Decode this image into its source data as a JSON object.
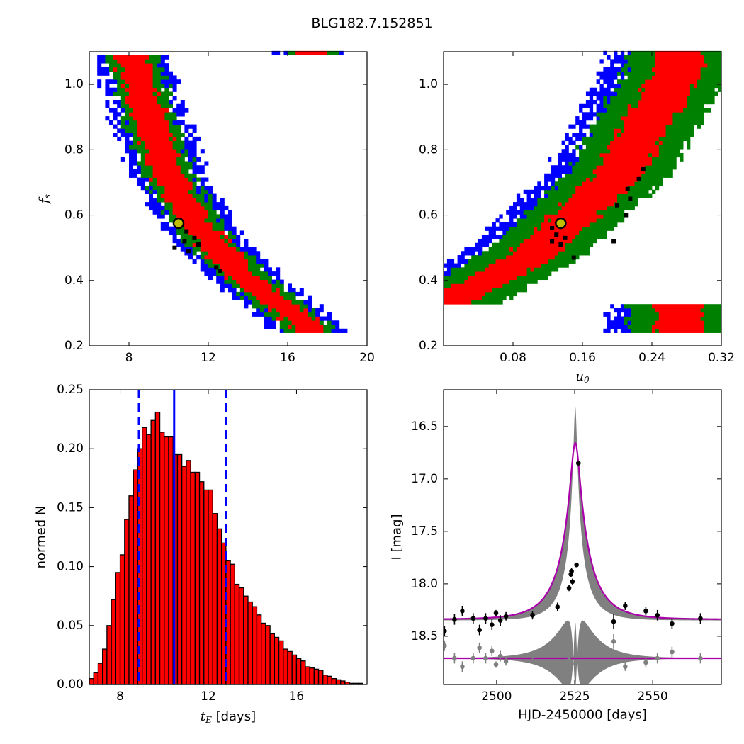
{
  "figure_title": "BLG182.7.152851",
  "colors": {
    "sigma1": "#ff0000",
    "sigma2": "#008000",
    "sigma3": "#0000ff",
    "best_points": "#000000",
    "best_marker_fill": "#bfbf00",
    "hist_bar": "#ff0000",
    "marker_line": "#0000ff",
    "model": "#aa00aa",
    "band": "#808080",
    "data_points": "#000000",
    "residual_points": "#808080"
  },
  "chart_data": [
    {
      "id": "fs_vs_tE",
      "type": "heatmap",
      "title": "",
      "xlabel": "",
      "ylabel": "f_s",
      "xlim": [
        6,
        20
      ],
      "ylim": [
        0.2,
        1.1
      ],
      "xticks": [
        8,
        12,
        16,
        20
      ],
      "yticks": [
        0.2,
        0.4,
        0.6,
        0.8,
        1.0
      ],
      "xticklabels": [
        "8",
        "12",
        "16",
        "20"
      ],
      "yticklabels": [
        "0.2",
        "0.4",
        "0.6",
        "0.8",
        "1.0"
      ],
      "regions": {
        "ridge_x_at_y": [
          [
            1.08,
            8.0
          ],
          [
            0.9,
            8.9
          ],
          [
            0.7,
            10.0
          ],
          [
            0.55,
            11.5
          ],
          [
            0.4,
            13.8
          ],
          [
            0.25,
            17.0
          ]
        ],
        "half_widths": {
          "sigma1": 0.8,
          "sigma2": 1.3,
          "sigma3": 1.9
        },
        "ylim": [
          0.24,
          1.09
        ]
      },
      "best_points": [
        [
          10.9,
          0.55
        ],
        [
          11.3,
          0.53
        ],
        [
          10.8,
          0.52
        ],
        [
          11.5,
          0.51
        ],
        [
          10.3,
          0.5
        ],
        [
          11.0,
          0.49
        ],
        [
          12.4,
          0.44
        ],
        [
          12.6,
          0.43
        ]
      ],
      "best_fit": {
        "x": 10.5,
        "y": 0.575
      }
    },
    {
      "id": "fs_vs_u0",
      "type": "heatmap",
      "title": "",
      "xlabel": "u_0",
      "ylabel": "",
      "xlim": [
        0,
        0.32
      ],
      "ylim": [
        0.2,
        1.1
      ],
      "xticks": [
        0.08,
        0.16,
        0.24,
        0.32
      ],
      "yticks": [
        0.2,
        0.4,
        0.6,
        0.8,
        1.0
      ],
      "xticklabels": [
        "0.08",
        "0.16",
        "0.24",
        "0.32"
      ],
      "yticklabels": [
        "0.2",
        "0.4",
        "0.6",
        "0.8",
        "1.0"
      ],
      "regions": {
        "center_line": [
          [
            0.0,
            0.32
          ],
          [
            0.1,
            0.47
          ],
          [
            0.2,
            0.72
          ],
          [
            0.27,
            1.05
          ]
        ],
        "half_widths": {
          "sigma1": 0.028,
          "sigma2": 0.06,
          "sigma3": 0.085
        },
        "ylim": [
          0.24,
          1.09
        ]
      },
      "best_points": [
        [
          0.125,
          0.56
        ],
        [
          0.13,
          0.54
        ],
        [
          0.125,
          0.52
        ],
        [
          0.135,
          0.51
        ],
        [
          0.14,
          0.53
        ],
        [
          0.15,
          0.47
        ],
        [
          0.196,
          0.52
        ],
        [
          0.21,
          0.6
        ],
        [
          0.215,
          0.65
        ],
        [
          0.225,
          0.71
        ],
        [
          0.23,
          0.74
        ],
        [
          0.2,
          0.63
        ],
        [
          0.212,
          0.68
        ]
      ],
      "best_fit": {
        "x": 0.135,
        "y": 0.575
      }
    },
    {
      "id": "tE_histogram",
      "type": "bar",
      "title": "",
      "xlabel": "t_E [days]",
      "ylabel": "normed N",
      "xlim": [
        6.6,
        19.2
      ],
      "ylim": [
        0,
        0.25
      ],
      "xticks": [
        8,
        12,
        16
      ],
      "yticks": [
        0.0,
        0.05,
        0.1,
        0.15,
        0.2,
        0.25
      ],
      "xticklabels": [
        "8",
        "12",
        "16"
      ],
      "yticklabels": [
        "0.00",
        "0.05",
        "0.10",
        "0.15",
        "0.20",
        "0.25"
      ],
      "bin_start": 6.6,
      "bin_width": 0.2,
      "values": [
        0.005,
        0.01,
        0.018,
        0.03,
        0.05,
        0.072,
        0.095,
        0.11,
        0.14,
        0.16,
        0.182,
        0.2,
        0.218,
        0.212,
        0.224,
        0.231,
        0.214,
        0.21,
        0.21,
        0.195,
        0.195,
        0.185,
        0.19,
        0.18,
        0.18,
        0.172,
        0.165,
        0.165,
        0.145,
        0.132,
        0.12,
        0.105,
        0.102,
        0.085,
        0.082,
        0.075,
        0.07,
        0.066,
        0.059,
        0.052,
        0.05,
        0.043,
        0.04,
        0.037,
        0.03,
        0.028,
        0.025,
        0.022,
        0.02,
        0.015,
        0.014,
        0.013,
        0.012,
        0.008,
        0.007,
        0.005,
        0.004,
        0.003,
        0.002,
        0.001,
        0.001,
        0.001
      ],
      "markers": [
        {
          "x": 8.85,
          "style": "dashed"
        },
        {
          "x": 10.45,
          "style": "solid"
        },
        {
          "x": 12.8,
          "style": "dashed"
        }
      ]
    },
    {
      "id": "light_curve",
      "type": "scatter",
      "title": "",
      "xlabel": "HJD-2450000 [days]",
      "ylabel": "I [mag]",
      "xlim": [
        2483,
        2572
      ],
      "ylim": [
        18.96,
        16.15
      ],
      "xticks": [
        2500,
        2525,
        2550
      ],
      "yticks": [
        16.5,
        17.0,
        17.5,
        18.0,
        18.5
      ],
      "xticklabels": [
        "2500",
        "2525",
        "2550"
      ],
      "yticklabels": [
        "16.5",
        "17.0",
        "17.5",
        "18.0",
        "18.5"
      ],
      "model": {
        "t0": 2525.2,
        "tE": 10.5,
        "u0": 0.135,
        "fs": 0.575,
        "baseline": 18.34
      },
      "band_model": {
        "t0": 2525.2,
        "tE": 8.5,
        "u0": 0.06,
        "fs": 0.35,
        "baseline": 18.34
      },
      "residual_baseline": 18.71,
      "points": [
        {
          "x": 2483.3,
          "y": 18.45,
          "err": 0.05
        },
        {
          "x": 2486.5,
          "y": 18.34,
          "err": 0.05
        },
        {
          "x": 2489.0,
          "y": 18.26,
          "err": 0.05
        },
        {
          "x": 2492.5,
          "y": 18.33,
          "err": 0.05
        },
        {
          "x": 2494.5,
          "y": 18.44,
          "err": 0.05
        },
        {
          "x": 2496.5,
          "y": 18.33,
          "err": 0.05
        },
        {
          "x": 2498.5,
          "y": 18.39,
          "err": 0.05
        },
        {
          "x": 2499.8,
          "y": 18.28,
          "err": 0.03
        },
        {
          "x": 2501.2,
          "y": 18.35,
          "err": 0.05
        },
        {
          "x": 2503.0,
          "y": 18.31,
          "err": 0.04
        },
        {
          "x": 2511.5,
          "y": 18.3,
          "err": 0.04
        },
        {
          "x": 2519.5,
          "y": 18.22,
          "err": 0.04
        },
        {
          "x": 2523.2,
          "y": 18.04,
          "err": 0.03
        },
        {
          "x": 2523.8,
          "y": 17.91,
          "err": 0.03
        },
        {
          "x": 2524.0,
          "y": 17.88,
          "err": 0.03
        },
        {
          "x": 2524.3,
          "y": 17.98,
          "err": 0.03
        },
        {
          "x": 2525.6,
          "y": 17.82,
          "err": 0.02
        },
        {
          "x": 2526.2,
          "y": 16.85,
          "err": 0.02
        },
        {
          "x": 2537.5,
          "y": 18.36,
          "err": 0.07
        },
        {
          "x": 2541.2,
          "y": 18.21,
          "err": 0.04
        },
        {
          "x": 2547.8,
          "y": 18.26,
          "err": 0.04
        },
        {
          "x": 2551.5,
          "y": 18.3,
          "err": 0.05
        },
        {
          "x": 2556.2,
          "y": 18.38,
          "err": 0.05
        },
        {
          "x": 2565.3,
          "y": 18.33,
          "err": 0.05
        }
      ],
      "residual_points": [
        {
          "x": 2483.3,
          "dy": -0.12,
          "err": 0.05
        },
        {
          "x": 2486.5,
          "dy": 0.0,
          "err": 0.05
        },
        {
          "x": 2489.0,
          "dy": 0.08,
          "err": 0.05
        },
        {
          "x": 2492.5,
          "dy": 0.0,
          "err": 0.05
        },
        {
          "x": 2494.5,
          "dy": -0.1,
          "err": 0.05
        },
        {
          "x": 2496.5,
          "dy": 0.0,
          "err": 0.05
        },
        {
          "x": 2498.5,
          "dy": -0.07,
          "err": 0.05
        },
        {
          "x": 2499.8,
          "dy": 0.06,
          "err": 0.03
        },
        {
          "x": 2501.2,
          "dy": -0.02,
          "err": 0.05
        },
        {
          "x": 2503.0,
          "dy": 0.03,
          "err": 0.04
        },
        {
          "x": 2511.5,
          "dy": -0.02,
          "err": 0.04
        },
        {
          "x": 2519.5,
          "dy": 0.06,
          "err": 0.04
        },
        {
          "x": 2523.2,
          "dy": 0.02,
          "err": 0.03
        },
        {
          "x": 2523.8,
          "dy": 0.08,
          "err": 0.03
        },
        {
          "x": 2524.0,
          "dy": 0.05,
          "err": 0.03
        },
        {
          "x": 2537.5,
          "dy": -0.16,
          "err": 0.07
        },
        {
          "x": 2541.2,
          "dy": 0.08,
          "err": 0.04
        },
        {
          "x": 2547.8,
          "dy": 0.04,
          "err": 0.04
        },
        {
          "x": 2551.5,
          "dy": 0.0,
          "err": 0.05
        },
        {
          "x": 2556.2,
          "dy": -0.06,
          "err": 0.05
        },
        {
          "x": 2565.3,
          "dy": 0.0,
          "err": 0.05
        }
      ]
    }
  ]
}
